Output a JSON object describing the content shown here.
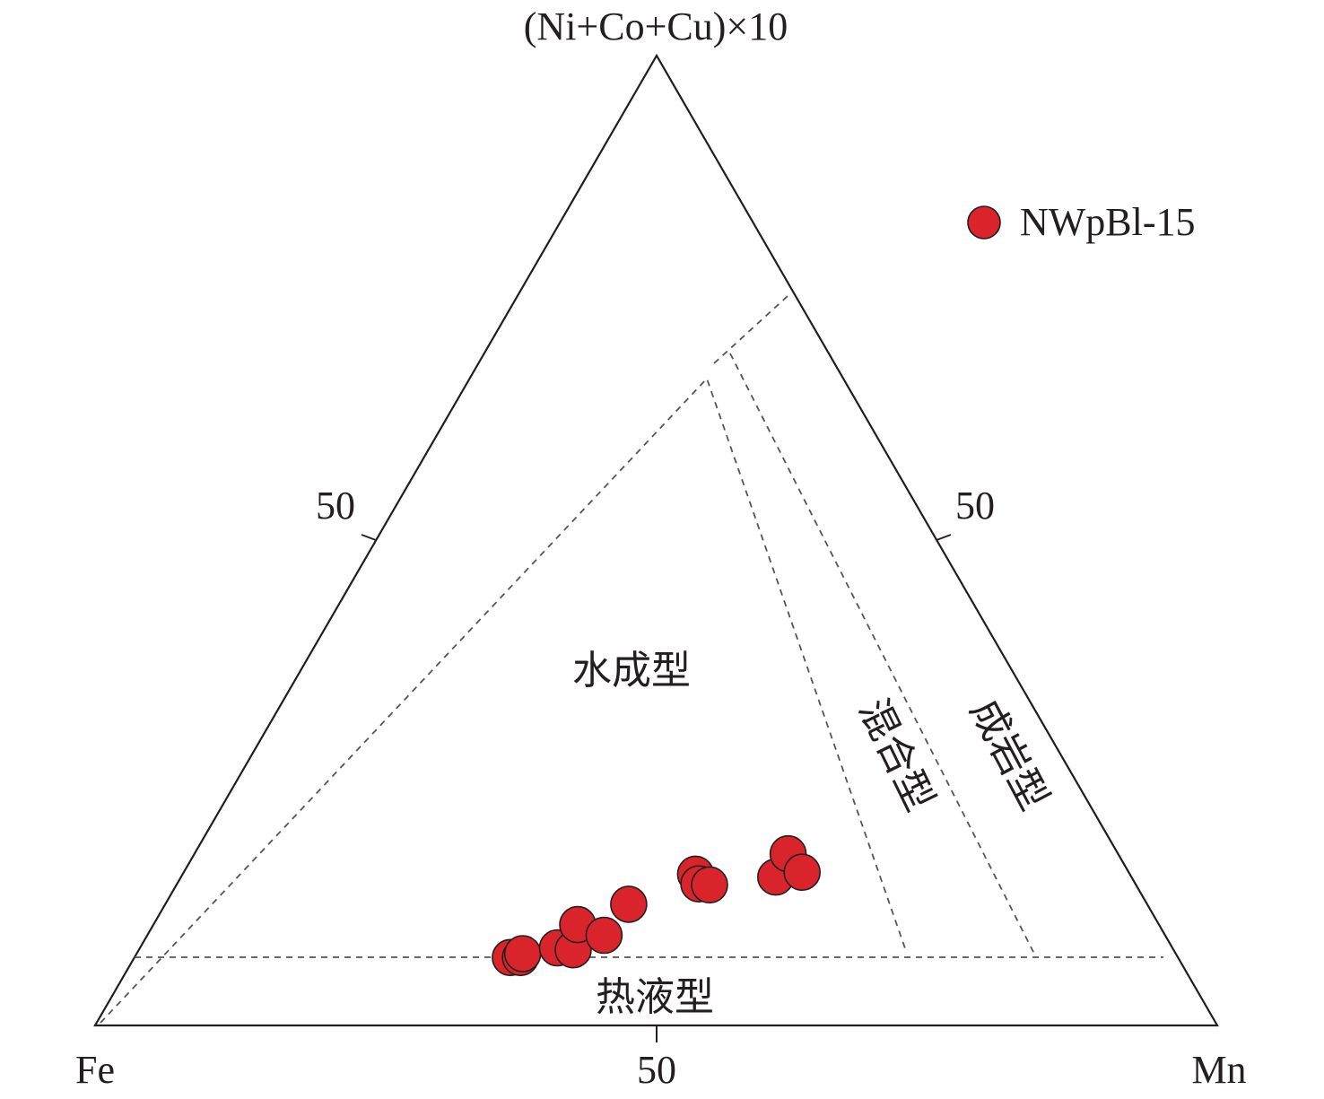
{
  "chart_data": {
    "type": "scatter",
    "subtype": "ternary",
    "apices": {
      "top": "(Ni+Co+Cu)×10",
      "left": "Fe",
      "right": "Mn"
    },
    "tick_labels": {
      "left": "50",
      "right": "50",
      "bottom": "50"
    },
    "fields": {
      "hydrogenetic": "水成型",
      "mixed": "混合型",
      "diagenetic": "成岩型",
      "hydrothermal": "热液型"
    },
    "legend": {
      "placement": "top-right",
      "entries": [
        "NWpBl-15"
      ]
    },
    "series": [
      {
        "name": "NWpBl-15",
        "color": "#d8242a",
        "note_units": "components as percent: fe, mn, nicocu (sum = 100)",
        "points": [
          {
            "fe": 59.5,
            "mn": 33.5,
            "nicocu": 7.0
          },
          {
            "fe": 58.6,
            "mn": 34.4,
            "nicocu": 7.0
          },
          {
            "fe": 58.2,
            "mn": 34.4,
            "nicocu": 7.4
          },
          {
            "fe": 54.8,
            "mn": 37.2,
            "nicocu": 8.0
          },
          {
            "fe": 53.5,
            "mn": 38.7,
            "nicocu": 7.8
          },
          {
            "fe": 51.8,
            "mn": 37.8,
            "nicocu": 10.4
          },
          {
            "fe": 50.0,
            "mn": 40.7,
            "nicocu": 9.3
          },
          {
            "fe": 46.2,
            "mn": 41.3,
            "nicocu": 12.5
          },
          {
            "fe": 38.7,
            "mn": 45.7,
            "nicocu": 15.6
          },
          {
            "fe": 38.9,
            "mn": 46.5,
            "nicocu": 14.6
          },
          {
            "fe": 38.0,
            "mn": 47.5,
            "nicocu": 14.5
          },
          {
            "fe": 31.7,
            "mn": 53.0,
            "nicocu": 15.3
          },
          {
            "fe": 29.4,
            "mn": 52.9,
            "nicocu": 17.7
          },
          {
            "fe": 29.1,
            "mn": 55.1,
            "nicocu": 15.8
          }
        ]
      }
    ]
  }
}
